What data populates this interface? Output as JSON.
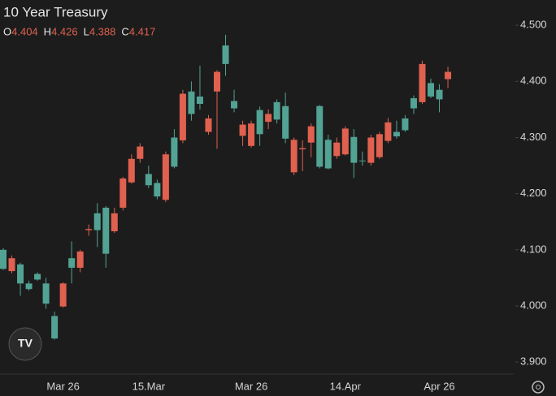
{
  "chart_data": {
    "type": "candlestick",
    "title": "10 Year Treasury",
    "legend_labels": [
      "O",
      "H",
      "L",
      "C"
    ],
    "categories": [
      null,
      null,
      null,
      null,
      null,
      null,
      null,
      "Mar 26",
      null,
      null,
      null,
      null,
      null,
      null,
      null,
      null,
      null,
      "15.Mar",
      null,
      null,
      null,
      null,
      null,
      null,
      null,
      null,
      null,
      null,
      null,
      "Mar 26",
      null,
      null,
      null,
      null,
      null,
      null,
      null,
      null,
      null,
      null,
      "14.Apr",
      null,
      null,
      null,
      null,
      null,
      null,
      null,
      null,
      null,
      null,
      "Apr 26",
      null
    ],
    "open": [
      4.1,
      4.062,
      4.074,
      4.04,
      4.057,
      4.04,
      3.982,
      3.999,
      4.085,
      4.068,
      4.135,
      4.165,
      4.175,
      4.133,
      4.175,
      4.22,
      4.262,
      4.235,
      4.219,
      4.189,
      4.3,
      4.295,
      4.382,
      4.373,
      4.31,
      4.382,
      4.464,
      4.365,
      4.303,
      4.285,
      4.349,
      4.328,
      4.363,
      4.356,
      4.238,
      4.279,
      4.291,
      4.356,
      4.296,
      4.267,
      4.27,
      4.301,
      4.259,
      4.255,
      4.265,
      4.294,
      4.31,
      4.334,
      4.37,
      4.363,
      4.397,
      4.385,
      4.404
    ],
    "high": [
      4.103,
      4.09,
      4.077,
      4.045,
      4.06,
      4.05,
      3.99,
      4.042,
      4.115,
      4.1,
      4.145,
      4.183,
      4.178,
      4.175,
      4.23,
      4.27,
      4.29,
      4.25,
      4.225,
      4.275,
      4.315,
      4.385,
      4.4,
      4.428,
      4.34,
      4.42,
      4.483,
      4.385,
      4.33,
      4.33,
      4.355,
      4.35,
      4.368,
      4.38,
      4.3,
      4.295,
      4.325,
      4.358,
      4.305,
      4.3,
      4.32,
      4.315,
      4.275,
      4.305,
      4.31,
      4.335,
      4.33,
      4.34,
      4.375,
      4.437,
      4.405,
      4.395,
      4.426
    ],
    "low": [
      4.064,
      4.058,
      4.018,
      4.027,
      4.045,
      3.995,
      3.94,
      3.997,
      4.04,
      4.06,
      4.125,
      4.105,
      4.068,
      4.13,
      4.17,
      4.218,
      4.255,
      4.21,
      4.19,
      4.185,
      4.245,
      4.29,
      4.33,
      4.35,
      4.305,
      4.28,
      4.41,
      4.345,
      4.285,
      4.282,
      4.285,
      4.315,
      4.325,
      4.29,
      4.233,
      4.24,
      4.265,
      4.245,
      4.243,
      4.262,
      4.268,
      4.228,
      4.25,
      4.25,
      4.262,
      4.29,
      4.298,
      4.31,
      4.342,
      4.36,
      4.37,
      4.345,
      4.388
    ],
    "close": [
      4.066,
      4.085,
      4.04,
      4.03,
      4.047,
      4.004,
      3.942,
      4.04,
      4.068,
      4.097,
      4.137,
      4.135,
      4.093,
      4.165,
      4.227,
      4.262,
      4.284,
      4.215,
      4.195,
      4.27,
      4.248,
      4.378,
      4.342,
      4.36,
      4.334,
      4.417,
      4.431,
      4.352,
      4.323,
      4.325,
      4.306,
      4.342,
      4.332,
      4.298,
      4.296,
      4.281,
      4.32,
      4.248,
      4.245,
      4.291,
      4.316,
      4.255,
      4.258,
      4.3,
      4.306,
      4.327,
      4.302,
      4.313,
      4.352,
      4.431,
      4.373,
      4.368,
      4.417
    ],
    "up_color": "#e0614f",
    "down_color": "#52a394",
    "ylim": [
      3.88,
      4.545
    ],
    "yticks": [
      {
        "value": 4.5,
        "label": "4.500"
      },
      {
        "value": 4.4,
        "label": "4.400"
      },
      {
        "value": 4.3,
        "label": "4.300"
      },
      {
        "value": 4.2,
        "label": "4.200"
      },
      {
        "value": 4.1,
        "label": "4.100"
      },
      {
        "value": 4.0,
        "label": "4.000"
      },
      {
        "value": 3.9,
        "label": "3.900"
      }
    ]
  }
}
